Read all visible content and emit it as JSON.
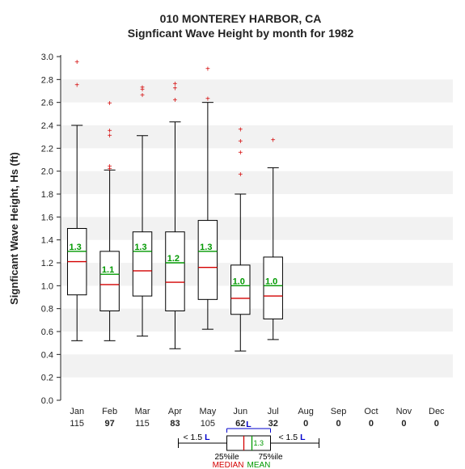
{
  "title1": "010   MONTEREY HARBOR, CA",
  "title2": "Signficant Wave Height by month for 1982",
  "ylabel": "Signficant Wave Height, Hs (ft)",
  "ylim": [
    0.0,
    3.0
  ],
  "ytick_step": 0.2,
  "font": {
    "title_pt": 14,
    "axis_pt": 13,
    "tick_pt": 11,
    "mean_pt": 11
  },
  "colors": {
    "bg": "#ffffff",
    "band": "#f2f2f2",
    "axis": "#222222",
    "box": "#000000",
    "median": "#d40000",
    "mean": "#009900",
    "outlier": "#d40000",
    "bracket": "#0000cc"
  },
  "months": [
    {
      "label": "Jan",
      "n": 115,
      "q1": 0.92,
      "q3": 1.5,
      "median": 1.21,
      "mean": 1.3,
      "wlo": 0.52,
      "whi": 2.4,
      "out": [
        2.75,
        2.95
      ]
    },
    {
      "label": "Feb",
      "n": 97,
      "q1": 0.78,
      "q3": 1.3,
      "median": 1.01,
      "mean": 1.1,
      "wlo": 0.52,
      "whi": 2.01,
      "out": [
        2.02,
        2.04,
        2.31,
        2.35,
        2.59
      ]
    },
    {
      "label": "Mar",
      "n": 115,
      "q1": 0.91,
      "q3": 1.47,
      "median": 1.13,
      "mean": 1.3,
      "wlo": 0.56,
      "whi": 2.31,
      "out": [
        2.66,
        2.71,
        2.73
      ]
    },
    {
      "label": "Apr",
      "n": 83,
      "q1": 0.78,
      "q3": 1.47,
      "median": 1.03,
      "mean": 1.2,
      "wlo": 0.45,
      "whi": 2.43,
      "out": [
        2.62,
        2.72,
        2.76
      ]
    },
    {
      "label": "May",
      "n": 105,
      "q1": 0.88,
      "q3": 1.57,
      "median": 1.16,
      "mean": 1.3,
      "wlo": 0.62,
      "whi": 2.6,
      "out": [
        2.63,
        2.89
      ]
    },
    {
      "label": "Jun",
      "n": 62,
      "q1": 0.75,
      "q3": 1.18,
      "median": 0.89,
      "mean": 1.0,
      "wlo": 0.43,
      "whi": 1.8,
      "out": [
        1.97,
        2.16,
        2.26,
        2.36
      ]
    },
    {
      "label": "Jul",
      "n": 32,
      "q1": 0.71,
      "q3": 1.25,
      "median": 0.91,
      "mean": 1.0,
      "wlo": 0.53,
      "whi": 2.03,
      "out": [
        2.27
      ]
    },
    {
      "label": "Aug",
      "n": 0
    },
    {
      "label": "Sep",
      "n": 0
    },
    {
      "label": "Oct",
      "n": 0
    },
    {
      "label": "Nov",
      "n": 0
    },
    {
      "label": "Dec",
      "n": 0
    }
  ],
  "legend": {
    "lo_text": "< 1.5",
    "hi_text": "< 1.5",
    "L": "L",
    "pct25": "25%ile",
    "pct75": "75%ile",
    "median_lbl": "MEDIAN",
    "mean_lbl": "MEAN"
  }
}
